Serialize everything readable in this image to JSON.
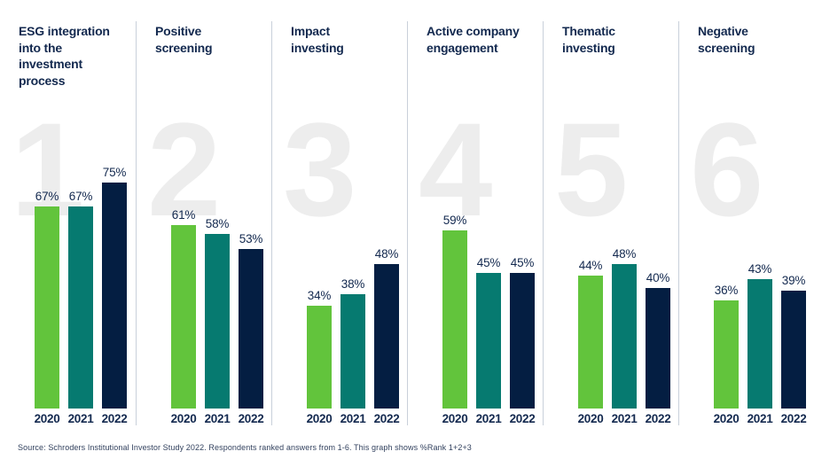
{
  "chart_data": {
    "type": "bar",
    "title": "",
    "categories": [
      "2020",
      "2021",
      "2022"
    ],
    "ylim": [
      0,
      100
    ],
    "value_suffix": "%",
    "grid": false,
    "legend": "none",
    "panels": [
      {
        "rank": "1",
        "title_lines": [
          "ESG integration",
          "into the",
          "investment",
          "process"
        ],
        "values": [
          67,
          67,
          75
        ]
      },
      {
        "rank": "2",
        "title_lines": [
          "Positive",
          "screening"
        ],
        "values": [
          61,
          58,
          53
        ]
      },
      {
        "rank": "3",
        "title_lines": [
          "Impact",
          "investing"
        ],
        "values": [
          34,
          38,
          48
        ]
      },
      {
        "rank": "4",
        "title_lines": [
          "Active company",
          "engagement"
        ],
        "values": [
          59,
          45,
          45
        ]
      },
      {
        "rank": "5",
        "title_lines": [
          "Thematic",
          "investing"
        ],
        "values": [
          44,
          48,
          40
        ]
      },
      {
        "rank": "6",
        "title_lines": [
          "Negative",
          "screening"
        ],
        "values": [
          36,
          43,
          39
        ]
      }
    ],
    "series_colors": {
      "2020": "#62C43C",
      "2021": "#067A70",
      "2022": "#041E42"
    },
    "style": {
      "text_color": "#13294F",
      "rank_number_color": "#EDEDED",
      "divider_color": "#C9D0DA",
      "source_text_color": "#33425F",
      "background": "#FFFFFF"
    }
  },
  "footer": {
    "source_text": "Source: Schroders Institutional Investor Study 2022. Respondents ranked answers from 1-6. This graph shows %Rank 1+2+3"
  }
}
